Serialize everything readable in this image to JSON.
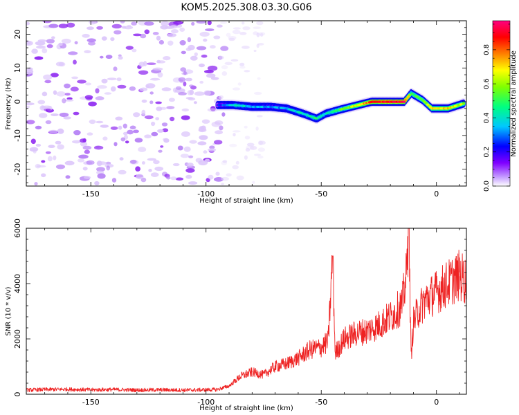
{
  "chart_data": [
    {
      "type": "heatmap",
      "title": "KOM5.2025.308.03.30.G06",
      "xlabel": "Height of straight line (km)",
      "ylabel": "Frequency (Hz)",
      "xlim": [
        -178,
        13
      ],
      "ylim": [
        -25,
        24
      ],
      "xticks": [
        -150,
        -100,
        -50,
        0
      ],
      "yticks": [
        -20,
        -10,
        0,
        10,
        20
      ],
      "colorbar": {
        "label": "Normalized spectral amplitude",
        "range": [
          0,
          0.97
        ],
        "ticks": [
          0.0,
          0.2,
          0.4,
          0.6,
          0.8
        ],
        "colors": [
          "#ffffff",
          "#c9a6ff",
          "#8000ff",
          "#0000ff",
          "#00c8ff",
          "#00ff80",
          "#80ff00",
          "#ffff00",
          "#ff8000",
          "#ff0000",
          "#ff0080"
        ]
      },
      "noise_region_x": [
        -178,
        -92
      ],
      "signal_track": [
        {
          "x": -95,
          "freq": -1.0,
          "amp": 0.2
        },
        {
          "x": -88,
          "freq": -1.0,
          "amp": 0.4
        },
        {
          "x": -80,
          "freq": -1.5,
          "amp": 0.35
        },
        {
          "x": -72,
          "freq": -1.5,
          "amp": 0.3
        },
        {
          "x": -65,
          "freq": -2.0,
          "amp": 0.35
        },
        {
          "x": -58,
          "freq": -3.5,
          "amp": 0.4
        },
        {
          "x": -52,
          "freq": -5.0,
          "amp": 0.45
        },
        {
          "x": -48,
          "freq": -3.5,
          "amp": 0.4
        },
        {
          "x": -40,
          "freq": -2.0,
          "amp": 0.55
        },
        {
          "x": -34,
          "freq": -1.0,
          "amp": 0.65
        },
        {
          "x": -28,
          "freq": 0.0,
          "amp": 0.85
        },
        {
          "x": -20,
          "freq": 0.0,
          "amp": 0.9
        },
        {
          "x": -14,
          "freq": 0.0,
          "amp": 0.9
        },
        {
          "x": -11,
          "freq": 2.5,
          "amp": 0.5
        },
        {
          "x": -6,
          "freq": 0.5,
          "amp": 0.55
        },
        {
          "x": -2,
          "freq": -2.0,
          "amp": 0.7
        },
        {
          "x": 5,
          "freq": -2.0,
          "amp": 0.7
        },
        {
          "x": 12,
          "freq": -0.5,
          "amp": 0.6
        }
      ]
    },
    {
      "type": "line",
      "xlabel": "Height of straight line (km)",
      "ylabel": "SNR (10 * v/v)",
      "xlim": [
        -178,
        13
      ],
      "ylim": [
        0,
        6000
      ],
      "xticks": [
        -150,
        -100,
        -50,
        0
      ],
      "yticks": [
        0,
        2000,
        4000,
        6000
      ],
      "series": [
        {
          "name": "SNR",
          "color": "#ee2222",
          "x": [
            -178,
            -170,
            -160,
            -150,
            -140,
            -130,
            -120,
            -110,
            -100,
            -95,
            -90,
            -85,
            -80,
            -75,
            -70,
            -65,
            -60,
            -55,
            -50,
            -47,
            -45,
            -44,
            -43,
            -40,
            -35,
            -30,
            -25,
            -20,
            -15,
            -13,
            -12,
            -11,
            -10,
            -8,
            -5,
            0,
            5,
            10,
            13
          ],
          "values": [
            150,
            170,
            180,
            160,
            170,
            150,
            160,
            150,
            160,
            170,
            300,
            650,
            800,
            700,
            1000,
            1100,
            1300,
            1600,
            1700,
            1900,
            5000,
            1500,
            1600,
            2000,
            2200,
            2300,
            2500,
            2800,
            3200,
            4300,
            6000,
            1300,
            2600,
            3000,
            3400,
            3700,
            4000,
            4300,
            4100
          ]
        }
      ]
    }
  ]
}
